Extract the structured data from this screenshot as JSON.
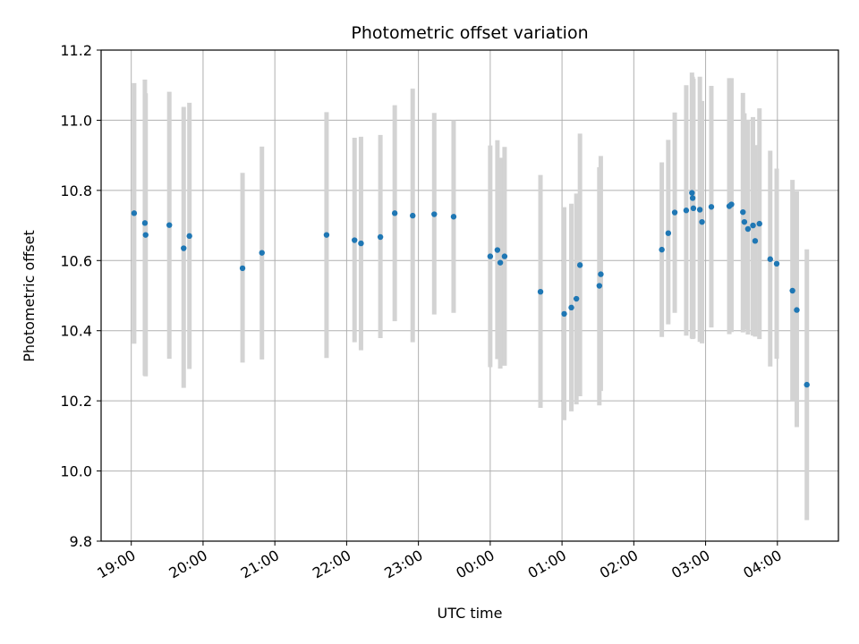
{
  "chart_data": {
    "type": "scatter",
    "title": "Photometric offset variation",
    "xlabel": "UTC time",
    "ylabel": "Photometric offset",
    "grid": true,
    "ylim": [
      9.8,
      11.2
    ],
    "xlim_hours": [
      18.58,
      28.85
    ],
    "y_ticks": [
      9.8,
      10.0,
      10.2,
      10.4,
      10.6,
      10.8,
      11.0,
      11.2
    ],
    "y_tick_labels": [
      "9.8",
      "10.0",
      "10.2",
      "10.4",
      "10.6",
      "10.8",
      "11.0",
      "11.2"
    ],
    "x_ticks_hours": [
      19,
      20,
      21,
      22,
      23,
      24,
      25,
      26,
      27,
      28
    ],
    "x_tick_labels": [
      "19:00",
      "20:00",
      "21:00",
      "22:00",
      "23:00",
      "00:00",
      "01:00",
      "02:00",
      "03:00",
      "04:00"
    ],
    "point_color": "#1f77b4",
    "errorbar_color": "#d3d3d3",
    "series": [
      {
        "name": "photometric offset",
        "t": [
          19.04,
          19.19,
          19.2,
          19.53,
          19.73,
          19.81,
          20.55,
          20.82,
          21.72,
          22.11,
          22.2,
          22.47,
          22.67,
          22.92,
          23.22,
          23.49,
          24.0,
          24.1,
          24.14,
          24.2,
          24.7,
          25.03,
          25.13,
          25.2,
          25.25,
          25.52,
          25.54,
          26.39,
          26.48,
          26.57,
          26.73,
          26.81,
          26.82,
          26.83,
          26.92,
          26.95,
          27.08,
          27.33,
          27.36,
          27.52,
          27.54,
          27.59,
          27.66,
          27.69,
          27.75,
          27.9,
          27.99,
          28.21,
          28.27,
          28.41
        ],
        "y": [
          10.735,
          10.707,
          10.673,
          10.701,
          10.635,
          10.67,
          10.578,
          10.622,
          10.673,
          10.658,
          10.649,
          10.667,
          10.735,
          10.728,
          10.732,
          10.725,
          10.612,
          10.63,
          10.594,
          10.612,
          10.511,
          10.448,
          10.466,
          10.491,
          10.587,
          10.528,
          10.561,
          10.631,
          10.678,
          10.737,
          10.743,
          10.793,
          10.778,
          10.749,
          10.745,
          10.71,
          10.753,
          10.755,
          10.76,
          10.738,
          10.71,
          10.69,
          10.7,
          10.656,
          10.705,
          10.604,
          10.591,
          10.514,
          10.459,
          10.246
        ],
        "y_low": [
          10.363,
          10.272,
          10.27,
          10.32,
          10.237,
          10.291,
          10.309,
          10.318,
          10.322,
          10.367,
          10.344,
          10.379,
          10.427,
          10.367,
          10.446,
          10.451,
          10.296,
          10.319,
          10.292,
          10.3,
          10.18,
          10.145,
          10.17,
          10.19,
          10.213,
          10.187,
          10.228,
          10.382,
          10.418,
          10.451,
          10.386,
          10.378,
          10.376,
          10.378,
          10.368,
          10.364,
          10.409,
          10.39,
          10.396,
          10.395,
          10.403,
          10.389,
          10.386,
          10.383,
          10.376,
          10.298,
          10.32,
          10.2,
          10.125,
          9.86
        ],
        "y_high": [
          11.106,
          11.116,
          11.077,
          11.081,
          11.038,
          11.05,
          10.85,
          10.925,
          11.023,
          10.95,
          10.953,
          10.958,
          11.043,
          11.09,
          11.021,
          11.0,
          10.928,
          10.943,
          10.893,
          10.924,
          10.844,
          10.752,
          10.762,
          10.791,
          10.962,
          10.866,
          10.898,
          10.88,
          10.944,
          11.022,
          11.1,
          11.136,
          11.124,
          11.118,
          11.124,
          11.055,
          11.098,
          11.12,
          11.12,
          11.078,
          11.02,
          11.001,
          11.009,
          10.929,
          11.034,
          10.913,
          10.862,
          10.83,
          10.797,
          10.632
        ]
      }
    ]
  }
}
